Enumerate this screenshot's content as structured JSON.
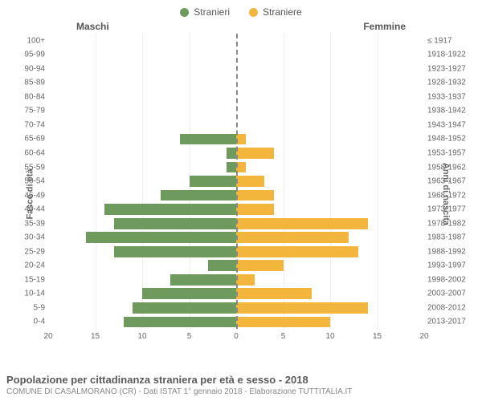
{
  "legend": {
    "male_label": "Stranieri",
    "female_label": "Straniere",
    "male_color": "#6f9a5e",
    "female_color": "#f2b63c"
  },
  "headers": {
    "male": "Maschi",
    "female": "Femmine"
  },
  "yaxis_left_title": "Fasce di età",
  "yaxis_right_title": "Anni di nascita",
  "chart": {
    "type": "pyramid-bar",
    "xmax": 20,
    "xticks": [
      20,
      15,
      10,
      5,
      0,
      5,
      10,
      15,
      20
    ],
    "grid_color": "#eeeeee",
    "centerline_color": "#888888",
    "background_color": "#ffffff",
    "bar_male_color": "#6f9a5e",
    "bar_female_color": "#f2b63c",
    "label_fontsize": 10,
    "rows": [
      {
        "age": "100+",
        "cohort": "≤ 1917",
        "male": 0,
        "female": 0
      },
      {
        "age": "95-99",
        "cohort": "1918-1922",
        "male": 0,
        "female": 0
      },
      {
        "age": "90-94",
        "cohort": "1923-1927",
        "male": 0,
        "female": 0
      },
      {
        "age": "85-89",
        "cohort": "1928-1932",
        "male": 0,
        "female": 0
      },
      {
        "age": "80-84",
        "cohort": "1933-1937",
        "male": 0,
        "female": 0
      },
      {
        "age": "75-79",
        "cohort": "1938-1942",
        "male": 0,
        "female": 0
      },
      {
        "age": "70-74",
        "cohort": "1943-1947",
        "male": 0,
        "female": 0
      },
      {
        "age": "65-69",
        "cohort": "1948-1952",
        "male": 6,
        "female": 1
      },
      {
        "age": "60-64",
        "cohort": "1953-1957",
        "male": 1,
        "female": 4
      },
      {
        "age": "55-59",
        "cohort": "1958-1962",
        "male": 1,
        "female": 1
      },
      {
        "age": "50-54",
        "cohort": "1963-1967",
        "male": 5,
        "female": 3
      },
      {
        "age": "45-49",
        "cohort": "1968-1972",
        "male": 8,
        "female": 4
      },
      {
        "age": "40-44",
        "cohort": "1973-1977",
        "male": 14,
        "female": 4
      },
      {
        "age": "35-39",
        "cohort": "1978-1982",
        "male": 13,
        "female": 14
      },
      {
        "age": "30-34",
        "cohort": "1983-1987",
        "male": 16,
        "female": 12
      },
      {
        "age": "25-29",
        "cohort": "1988-1992",
        "male": 13,
        "female": 13
      },
      {
        "age": "20-24",
        "cohort": "1993-1997",
        "male": 3,
        "female": 5
      },
      {
        "age": "15-19",
        "cohort": "1998-2002",
        "male": 7,
        "female": 2
      },
      {
        "age": "10-14",
        "cohort": "2003-2007",
        "male": 10,
        "female": 8
      },
      {
        "age": "5-9",
        "cohort": "2008-2012",
        "male": 11,
        "female": 14
      },
      {
        "age": "0-4",
        "cohort": "2013-2017",
        "male": 12,
        "female": 10
      }
    ]
  },
  "caption": {
    "title": "Popolazione per cittadinanza straniera per età e sesso - 2018",
    "subtitle": "COMUNE DI CASALMORANO (CR) - Dati ISTAT 1° gennaio 2018 - Elaborazione TUTTITALIA.IT"
  }
}
